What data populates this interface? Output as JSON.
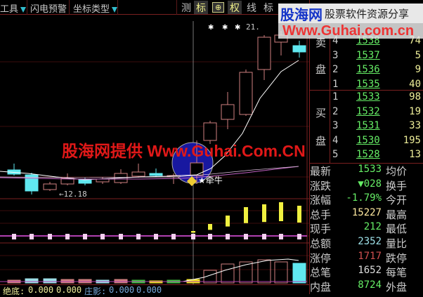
{
  "toolbar": {
    "tools": "工具",
    "flash_alert": "闪电预警",
    "axis_type": "坐标类型",
    "measure": "测",
    "mark": "标",
    "crosshair": "⊕",
    "rights": "权",
    "line": "线",
    "more": "标"
  },
  "chart": {
    "top_marker": "21.",
    "low_label": "←12.18",
    "signal_label": "牵牛",
    "colors": {
      "up": "#d08080",
      "down": "#60e8f0",
      "ma1": "#ffffff",
      "ma2": "#c060c0",
      "circle": "#1818a0"
    }
  },
  "bottom": {
    "label1": "绝底:",
    "v1": "0.000",
    "v2": "0.000",
    "label2": "庄影:",
    "v3": "0.000",
    "v4": "0.000"
  },
  "watermarks": {
    "logo": "股海网",
    "tagline": "股票软件资源分享",
    "url": "Www.Guhai.com.cn",
    "center": "股海网提供 Www.Guhai.Com.CN"
  },
  "orderbook": {
    "sell_label": [
      "卖",
      "盘"
    ],
    "buy_label": [
      "买",
      "盘"
    ],
    "sell": [
      {
        "level": "4",
        "price": "1538",
        "vol": "74"
      },
      {
        "level": "3",
        "price": "1537",
        "vol": "5"
      },
      {
        "level": "2",
        "price": "1536",
        "vol": "9"
      },
      {
        "level": "1",
        "price": "1535",
        "vol": "40"
      }
    ],
    "buy": [
      {
        "level": "1",
        "price": "1533",
        "vol": "98"
      },
      {
        "level": "2",
        "price": "1532",
        "vol": "19"
      },
      {
        "level": "3",
        "price": "1531",
        "vol": "33"
      },
      {
        "level": "4",
        "price": "1530",
        "vol": "195"
      },
      {
        "level": "5",
        "price": "1528",
        "vol": "13"
      }
    ]
  },
  "stats": [
    {
      "label": "最新",
      "value": "1533",
      "color": "#6e6",
      "label2": "均价"
    },
    {
      "label": "涨跌",
      "value": "▼028",
      "color": "#6e6",
      "label2": "换手"
    },
    {
      "label": "涨幅",
      "value": "-1.79%",
      "color": "#6e6",
      "label2": "今开"
    },
    {
      "label": "总手",
      "value": "15227",
      "color": "#ffe9a0",
      "label2": "最高"
    },
    {
      "label": "现手",
      "value": "212",
      "color": "#6e6",
      "label2": "最低"
    },
    {
      "label": "总额",
      "value": "2352",
      "color": "#9ee0e8",
      "label2": "量比"
    },
    {
      "label": "涨停",
      "value": "1717",
      "color": "#d05050",
      "label2": "跌停"
    },
    {
      "label": "总笔",
      "value": "1652",
      "color": "#ddd",
      "label2": "每笔"
    },
    {
      "label": "内盘",
      "value": "8724",
      "color": "#6e6",
      "label2": "外盘"
    }
  ]
}
